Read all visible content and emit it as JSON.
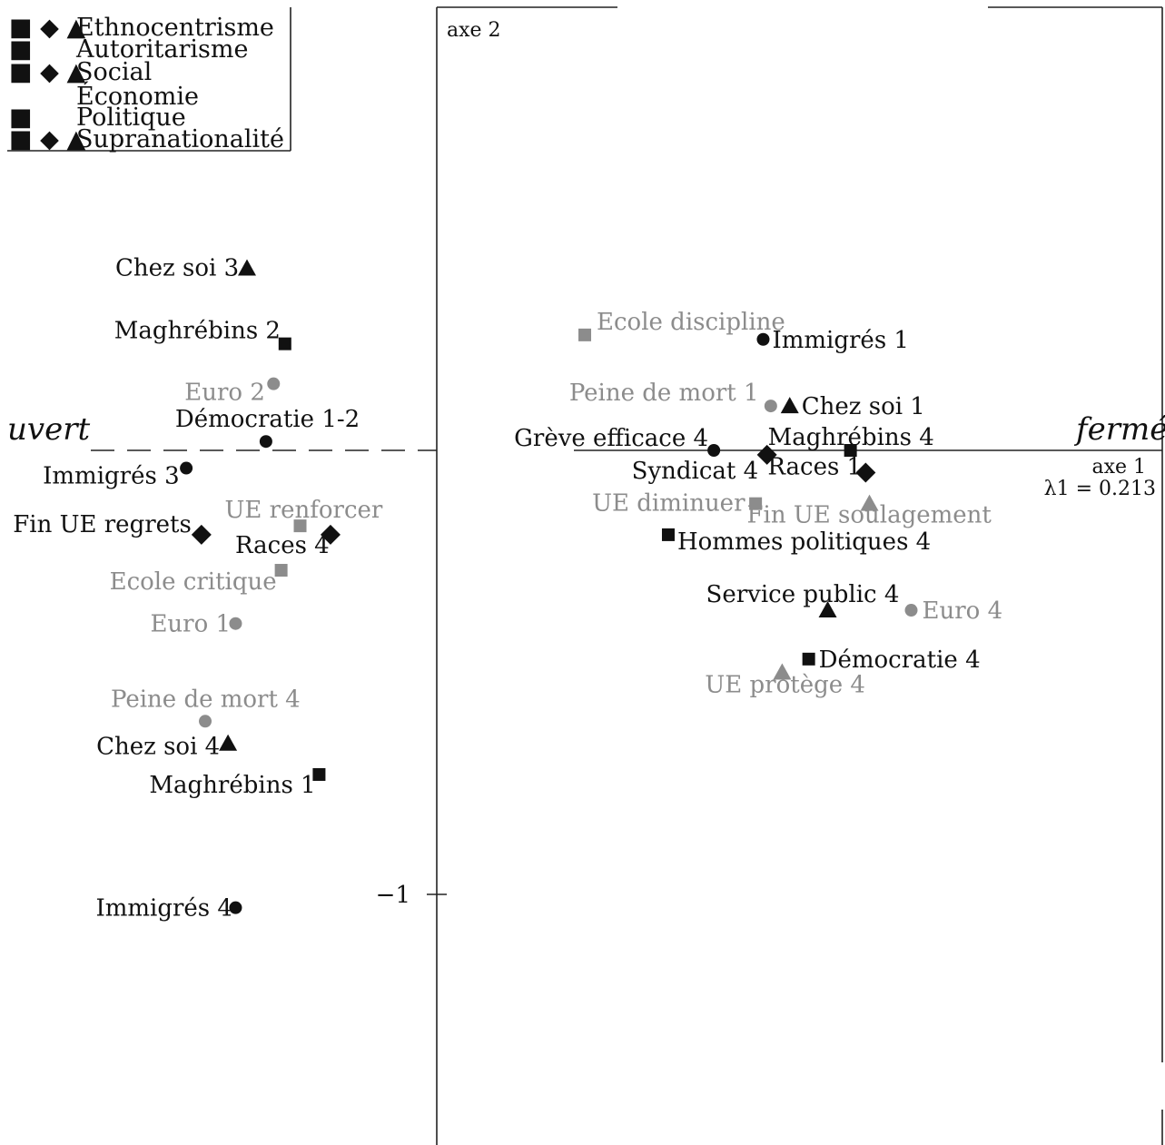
{
  "chart_data": {
    "type": "scatter",
    "title": "",
    "xlabel": "axe 1",
    "ylabel": "axe 2",
    "eigenvalue_label": "λ1 = 0.213",
    "pole_left": "uvert",
    "pole_right": "fermé",
    "y_tick": "−1",
    "xlim": [
      -1.1,
      1.85
    ],
    "ylim": [
      -1.55,
      1.0
    ],
    "grid": false,
    "legend_position": "top-left",
    "legend": [
      {
        "label": "Ethnocentrisme",
        "markers": "■ ◆ ▲"
      },
      {
        "label": "Autoritarisme",
        "markers": "■"
      },
      {
        "label": "Social",
        "markers": "■ ◆ ▲"
      },
      {
        "label": "Économie",
        "markers": ""
      },
      {
        "label": "Politique",
        "markers": "■"
      },
      {
        "label": "Supranationalité",
        "markers": "■ ◆ ▲"
      }
    ],
    "points": [
      {
        "label": "Chez soi 3",
        "x": -0.5,
        "y": 0.41,
        "marker": "triangle",
        "tone": "dark"
      },
      {
        "label": "Maghrébins 2",
        "x": -0.4,
        "y": 0.24,
        "marker": "square",
        "tone": "dark"
      },
      {
        "label": "Euro 2",
        "x": -0.43,
        "y": 0.15,
        "marker": "circle",
        "tone": "grey"
      },
      {
        "label": "Démocratie 1-2",
        "x": -0.45,
        "y": 0.02,
        "marker": "circle",
        "tone": "dark"
      },
      {
        "label": "Immigrés 3",
        "x": -0.66,
        "y": -0.04,
        "marker": "circle",
        "tone": "dark"
      },
      {
        "label": "Fin UE regrets",
        "x": -0.62,
        "y": -0.19,
        "marker": "diamond",
        "tone": "dark"
      },
      {
        "label": "UE renforcer",
        "x": -0.36,
        "y": -0.17,
        "marker": "square",
        "tone": "grey"
      },
      {
        "label": "Races 4",
        "x": -0.28,
        "y": -0.19,
        "marker": "diamond",
        "tone": "dark"
      },
      {
        "label": "Ecole critique",
        "x": -0.41,
        "y": -0.27,
        "marker": "square",
        "tone": "grey"
      },
      {
        "label": "Euro 1",
        "x": -0.53,
        "y": -0.39,
        "marker": "circle",
        "tone": "grey"
      },
      {
        "label": "Peine de mort 4",
        "x": -0.61,
        "y": -0.61,
        "marker": "circle",
        "tone": "grey"
      },
      {
        "label": "Chez soi 4",
        "x": -0.55,
        "y": -0.66,
        "marker": "triangle",
        "tone": "dark"
      },
      {
        "label": "Maghrébins 1",
        "x": -0.31,
        "y": -0.73,
        "marker": "square",
        "tone": "dark"
      },
      {
        "label": "Immigrés 4",
        "x": -0.53,
        "y": -1.03,
        "marker": "circle",
        "tone": "dark"
      },
      {
        "label": "Ecole discipline",
        "x": 0.39,
        "y": 0.26,
        "marker": "square",
        "tone": "grey"
      },
      {
        "label": "Immigrés 1",
        "x": 0.86,
        "y": 0.25,
        "marker": "circle",
        "tone": "dark"
      },
      {
        "label": "Peine de mort 1",
        "x": 0.88,
        "y": 0.1,
        "marker": "circle",
        "tone": "grey"
      },
      {
        "label": "Chez soi 1",
        "x": 0.93,
        "y": 0.1,
        "marker": "triangle",
        "tone": "dark"
      },
      {
        "label": "Grève efficace 4",
        "x": 0.73,
        "y": 0.0,
        "marker": "circle",
        "tone": "dark"
      },
      {
        "label": "Maghrébins 4",
        "x": 1.09,
        "y": 0.0,
        "marker": "square",
        "tone": "dark"
      },
      {
        "label": "Syndicat 4",
        "x": 0.87,
        "y": -0.01,
        "marker": "diamond",
        "tone": "dark"
      },
      {
        "label": "Races 1",
        "x": 1.13,
        "y": -0.05,
        "marker": "diamond",
        "tone": "dark"
      },
      {
        "label": "UE diminuer",
        "x": 0.84,
        "y": -0.12,
        "marker": "square",
        "tone": "grey"
      },
      {
        "label": "Fin UE soulagement",
        "x": 1.14,
        "y": -0.12,
        "marker": "triangle",
        "tone": "grey"
      },
      {
        "label": "Hommes politiques 4",
        "x": 0.61,
        "y": -0.19,
        "marker": "square",
        "tone": "dark"
      },
      {
        "label": "Service public 4",
        "x": 1.03,
        "y": -0.36,
        "marker": "triangle",
        "tone": "dark"
      },
      {
        "label": "Euro 4",
        "x": 1.25,
        "y": -0.36,
        "marker": "circle",
        "tone": "grey"
      },
      {
        "label": "Démocratie 4",
        "x": 0.98,
        "y": -0.47,
        "marker": "square",
        "tone": "dark"
      },
      {
        "label": "UE protège 4",
        "x": 0.91,
        "y": -0.5,
        "marker": "triangle",
        "tone": "grey"
      }
    ]
  }
}
